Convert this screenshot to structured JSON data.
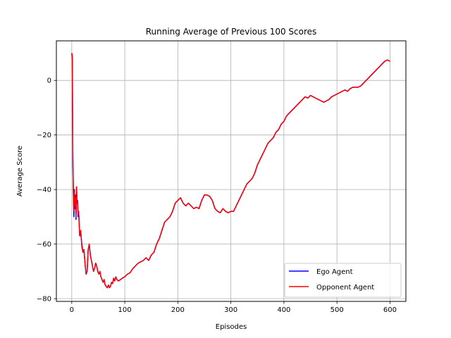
{
  "chart_data": {
    "type": "line",
    "title": "Running Average of Previous 100 Scores",
    "xlabel": "Episodes",
    "ylabel": "Average Score",
    "xlim": [
      -29,
      630
    ],
    "ylim": [
      -81,
      14.5
    ],
    "xticks": [
      0,
      100,
      200,
      300,
      400,
      500,
      600
    ],
    "yticks": [
      -80,
      -60,
      -40,
      -20,
      0
    ],
    "grid": true,
    "legend_position": "lower-right",
    "series": [
      {
        "name": "Ego Agent",
        "color": "#0000ff",
        "points": [
          [
            0,
            10
          ],
          [
            1,
            8
          ],
          [
            2,
            -30
          ],
          [
            3,
            -42
          ],
          [
            4,
            -50
          ],
          [
            5,
            -40
          ],
          [
            6,
            -47
          ],
          [
            7,
            -42
          ],
          [
            8,
            -51
          ],
          [
            9,
            -39
          ],
          [
            10,
            -45
          ],
          [
            11,
            -44
          ],
          [
            12,
            -50
          ],
          [
            13,
            -48
          ],
          [
            15,
            -57
          ],
          [
            17,
            -56
          ],
          [
            19,
            -60
          ],
          [
            21,
            -63
          ],
          [
            23,
            -62
          ],
          [
            25,
            -67
          ],
          [
            27,
            -71
          ],
          [
            29,
            -70
          ],
          [
            31,
            -62
          ],
          [
            33,
            -60
          ],
          [
            35,
            -64
          ],
          [
            37,
            -66
          ],
          [
            39,
            -68
          ],
          [
            41,
            -70
          ],
          [
            43,
            -69
          ],
          [
            45,
            -67
          ],
          [
            47,
            -68
          ],
          [
            49,
            -70
          ],
          [
            51,
            -71
          ],
          [
            53,
            -70
          ],
          [
            55,
            -72
          ],
          [
            57,
            -73
          ],
          [
            59,
            -74
          ],
          [
            61,
            -73
          ],
          [
            63,
            -75
          ],
          [
            65,
            -75.5
          ],
          [
            67,
            -76
          ],
          [
            69,
            -75
          ],
          [
            71,
            -76
          ],
          [
            73,
            -75.5
          ],
          [
            75,
            -74
          ],
          [
            77,
            -74.5
          ],
          [
            79,
            -72.5
          ],
          [
            81,
            -73.5
          ],
          [
            83,
            -72
          ],
          [
            85,
            -73
          ],
          [
            88,
            -73.5
          ],
          [
            92,
            -73
          ],
          [
            95,
            -72.5
          ],
          [
            100,
            -72
          ],
          [
            105,
            -71
          ],
          [
            110,
            -70.5
          ],
          [
            115,
            -69
          ],
          [
            120,
            -68
          ],
          [
            125,
            -67
          ],
          [
            130,
            -66.5
          ],
          [
            135,
            -66
          ],
          [
            140,
            -65
          ],
          [
            145,
            -66
          ],
          [
            150,
            -64
          ],
          [
            155,
            -63
          ],
          [
            160,
            -60
          ],
          [
            165,
            -58
          ],
          [
            170,
            -55
          ],
          [
            175,
            -52
          ],
          [
            180,
            -51
          ],
          [
            185,
            -50
          ],
          [
            190,
            -48
          ],
          [
            195,
            -45
          ],
          [
            200,
            -44
          ],
          [
            205,
            -43
          ],
          [
            210,
            -45
          ],
          [
            215,
            -46
          ],
          [
            220,
            -45
          ],
          [
            225,
            -46
          ],
          [
            230,
            -47
          ],
          [
            235,
            -46.5
          ],
          [
            240,
            -47
          ],
          [
            245,
            -44
          ],
          [
            250,
            -42
          ],
          [
            255,
            -42
          ],
          [
            260,
            -42.5
          ],
          [
            265,
            -44
          ],
          [
            270,
            -47
          ],
          [
            275,
            -48
          ],
          [
            280,
            -48.5
          ],
          [
            285,
            -47
          ],
          [
            290,
            -48
          ],
          [
            295,
            -48.5
          ],
          [
            300,
            -48
          ],
          [
            305,
            -48
          ],
          [
            310,
            -46
          ],
          [
            315,
            -44
          ],
          [
            320,
            -42
          ],
          [
            325,
            -40
          ],
          [
            330,
            -38
          ],
          [
            335,
            -37
          ],
          [
            340,
            -36
          ],
          [
            345,
            -34
          ],
          [
            350,
            -31
          ],
          [
            355,
            -29
          ],
          [
            360,
            -27
          ],
          [
            365,
            -25
          ],
          [
            370,
            -23
          ],
          [
            375,
            -22
          ],
          [
            380,
            -21
          ],
          [
            385,
            -19
          ],
          [
            390,
            -18
          ],
          [
            395,
            -16
          ],
          [
            400,
            -15
          ],
          [
            405,
            -13
          ],
          [
            410,
            -12
          ],
          [
            415,
            -11
          ],
          [
            420,
            -10
          ],
          [
            425,
            -9
          ],
          [
            430,
            -8
          ],
          [
            435,
            -7
          ],
          [
            440,
            -6
          ],
          [
            445,
            -6.5
          ],
          [
            450,
            -5.5
          ],
          [
            455,
            -6
          ],
          [
            460,
            -6.5
          ],
          [
            465,
            -7
          ],
          [
            470,
            -7.5
          ],
          [
            475,
            -8
          ],
          [
            480,
            -7.5
          ],
          [
            485,
            -7
          ],
          [
            490,
            -6
          ],
          [
            495,
            -5.5
          ],
          [
            500,
            -5
          ],
          [
            505,
            -4.5
          ],
          [
            510,
            -4
          ],
          [
            515,
            -3.5
          ],
          [
            520,
            -4
          ],
          [
            525,
            -3
          ],
          [
            530,
            -2.5
          ],
          [
            535,
            -2.5
          ],
          [
            540,
            -2.5
          ],
          [
            545,
            -2
          ],
          [
            550,
            -1
          ],
          [
            555,
            0
          ],
          [
            560,
            1
          ],
          [
            565,
            2
          ],
          [
            570,
            3
          ],
          [
            575,
            4
          ],
          [
            580,
            5
          ],
          [
            585,
            6
          ],
          [
            590,
            7
          ],
          [
            595,
            7.5
          ],
          [
            600,
            7
          ]
        ]
      },
      {
        "name": "Opponent Agent",
        "color": "#ff0000",
        "points": [
          [
            0,
            10
          ],
          [
            1,
            9
          ],
          [
            2,
            -26
          ],
          [
            3,
            -40
          ],
          [
            4,
            -48
          ],
          [
            5,
            -41
          ],
          [
            6,
            -46
          ],
          [
            7,
            -43
          ],
          [
            8,
            -50
          ],
          [
            9,
            -39
          ],
          [
            10,
            -44
          ],
          [
            11,
            -45
          ],
          [
            12,
            -49
          ],
          [
            13,
            -48
          ],
          [
            15,
            -57
          ],
          [
            17,
            -55
          ],
          [
            19,
            -61
          ],
          [
            21,
            -63
          ],
          [
            23,
            -62
          ],
          [
            25,
            -67
          ],
          [
            27,
            -71
          ],
          [
            29,
            -70
          ],
          [
            31,
            -62
          ],
          [
            33,
            -60
          ],
          [
            35,
            -64
          ],
          [
            37,
            -66
          ],
          [
            39,
            -68
          ],
          [
            41,
            -70
          ],
          [
            43,
            -69
          ],
          [
            45,
            -67
          ],
          [
            47,
            -68
          ],
          [
            49,
            -70
          ],
          [
            51,
            -71
          ],
          [
            53,
            -70
          ],
          [
            55,
            -72
          ],
          [
            57,
            -73
          ],
          [
            59,
            -74
          ],
          [
            61,
            -73
          ],
          [
            63,
            -75
          ],
          [
            65,
            -75.5
          ],
          [
            67,
            -76
          ],
          [
            69,
            -75
          ],
          [
            71,
            -76
          ],
          [
            73,
            -75.5
          ],
          [
            75,
            -74
          ],
          [
            77,
            -74.5
          ],
          [
            79,
            -72.5
          ],
          [
            81,
            -73.5
          ],
          [
            83,
            -72
          ],
          [
            85,
            -73
          ],
          [
            88,
            -73.5
          ],
          [
            92,
            -73
          ],
          [
            95,
            -72.5
          ],
          [
            100,
            -72
          ],
          [
            105,
            -71
          ],
          [
            110,
            -70.5
          ],
          [
            115,
            -69
          ],
          [
            120,
            -68
          ],
          [
            125,
            -67
          ],
          [
            130,
            -66.5
          ],
          [
            135,
            -66
          ],
          [
            140,
            -65
          ],
          [
            145,
            -66
          ],
          [
            150,
            -64
          ],
          [
            155,
            -63
          ],
          [
            160,
            -60
          ],
          [
            165,
            -58
          ],
          [
            170,
            -55
          ],
          [
            175,
            -52
          ],
          [
            180,
            -51
          ],
          [
            185,
            -50
          ],
          [
            190,
            -48
          ],
          [
            195,
            -45
          ],
          [
            200,
            -44
          ],
          [
            205,
            -43
          ],
          [
            210,
            -45
          ],
          [
            215,
            -46
          ],
          [
            220,
            -45
          ],
          [
            225,
            -46
          ],
          [
            230,
            -47
          ],
          [
            235,
            -46.5
          ],
          [
            240,
            -47
          ],
          [
            245,
            -44
          ],
          [
            250,
            -42
          ],
          [
            255,
            -42
          ],
          [
            260,
            -42.5
          ],
          [
            265,
            -44
          ],
          [
            270,
            -47
          ],
          [
            275,
            -48
          ],
          [
            280,
            -48.5
          ],
          [
            285,
            -47
          ],
          [
            290,
            -48
          ],
          [
            295,
            -48.5
          ],
          [
            300,
            -48
          ],
          [
            305,
            -48
          ],
          [
            310,
            -46
          ],
          [
            315,
            -44
          ],
          [
            320,
            -42
          ],
          [
            325,
            -40
          ],
          [
            330,
            -38
          ],
          [
            335,
            -37
          ],
          [
            340,
            -36
          ],
          [
            345,
            -34
          ],
          [
            350,
            -31
          ],
          [
            355,
            -29
          ],
          [
            360,
            -27
          ],
          [
            365,
            -25
          ],
          [
            370,
            -23
          ],
          [
            375,
            -22
          ],
          [
            380,
            -21
          ],
          [
            385,
            -19
          ],
          [
            390,
            -18
          ],
          [
            395,
            -16
          ],
          [
            400,
            -15
          ],
          [
            405,
            -13
          ],
          [
            410,
            -12
          ],
          [
            415,
            -11
          ],
          [
            420,
            -10
          ],
          [
            425,
            -9
          ],
          [
            430,
            -8
          ],
          [
            435,
            -7
          ],
          [
            440,
            -6
          ],
          [
            445,
            -6.5
          ],
          [
            450,
            -5.5
          ],
          [
            455,
            -6
          ],
          [
            460,
            -6.5
          ],
          [
            465,
            -7
          ],
          [
            470,
            -7.5
          ],
          [
            475,
            -8
          ],
          [
            480,
            -7.5
          ],
          [
            485,
            -7
          ],
          [
            490,
            -6
          ],
          [
            495,
            -5.5
          ],
          [
            500,
            -5
          ],
          [
            505,
            -4.5
          ],
          [
            510,
            -4
          ],
          [
            515,
            -3.5
          ],
          [
            520,
            -4
          ],
          [
            525,
            -3
          ],
          [
            530,
            -2.5
          ],
          [
            535,
            -2.5
          ],
          [
            540,
            -2.5
          ],
          [
            545,
            -2
          ],
          [
            550,
            -1
          ],
          [
            555,
            0
          ],
          [
            560,
            1
          ],
          [
            565,
            2
          ],
          [
            570,
            3
          ],
          [
            575,
            4
          ],
          [
            580,
            5
          ],
          [
            585,
            6
          ],
          [
            590,
            7
          ],
          [
            595,
            7.5
          ],
          [
            600,
            7
          ]
        ]
      }
    ]
  }
}
